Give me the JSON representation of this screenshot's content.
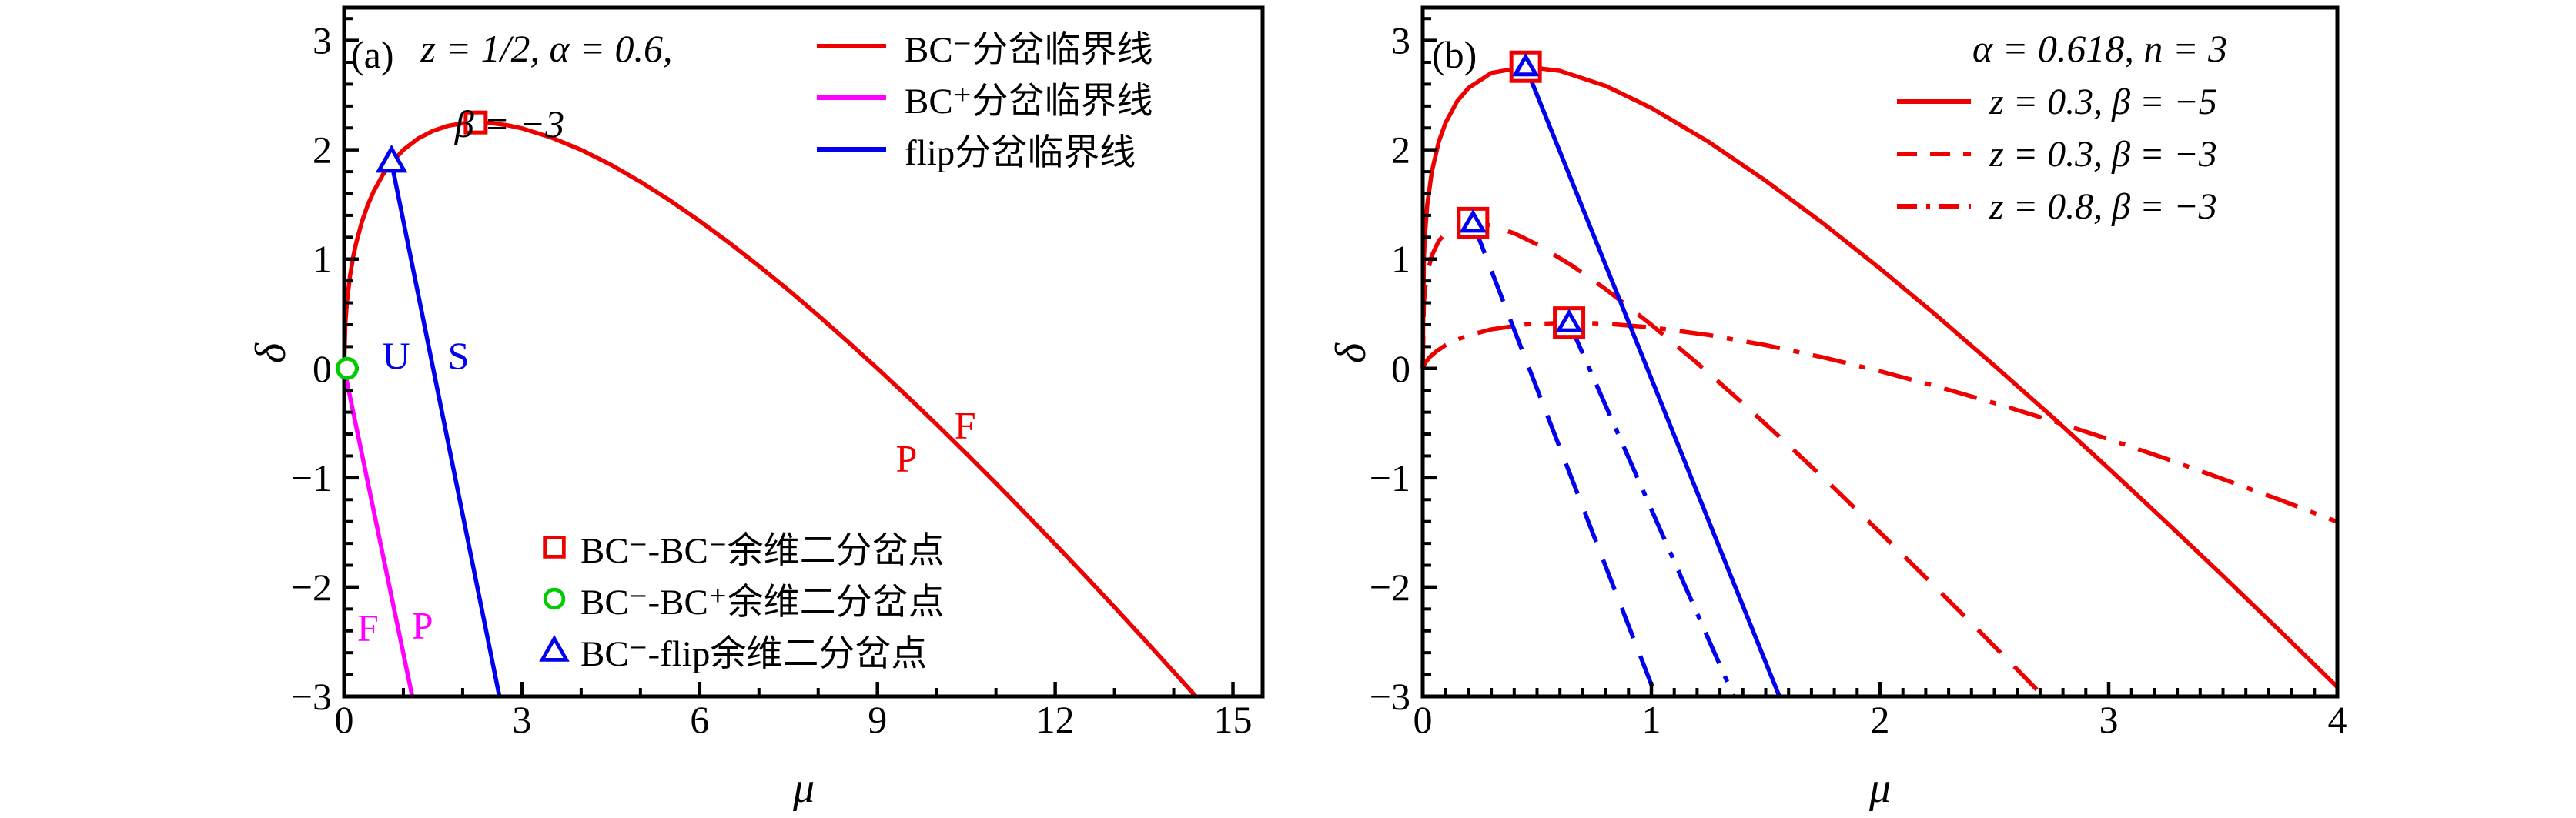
{
  "page": {
    "background": "#ffffff",
    "text_color": "#000000"
  },
  "chart_data": [
    {
      "id": "a",
      "type": "line",
      "panel_tag": "(a)",
      "title_lines": [
        "z = 1/2, α = 0.6,",
        "β = −3"
      ],
      "xlabel": "μ",
      "ylabel": "δ",
      "xlim": [
        0,
        15.5
      ],
      "ylim": [
        -3,
        3.3
      ],
      "x_major_ticks": [
        0,
        3,
        6,
        9,
        12,
        15
      ],
      "x_minor_step": 1,
      "y_major_ticks": [
        -3,
        -2,
        -1,
        0,
        1,
        2,
        3
      ],
      "y_minor_step": 0.2,
      "grid": false,
      "legend_position": "top-right-inside",
      "series": [
        {
          "name": "BC⁻分岔临界线",
          "color": "#ee0000",
          "style": "solid",
          "in_legend": true,
          "points": [
            [
              0,
              0
            ],
            [
              0.02,
              0.404
            ],
            [
              0.05,
              0.621
            ],
            [
              0.1,
              0.849
            ],
            [
              0.15,
              1.012
            ],
            [
              0.2,
              1.142
            ],
            [
              0.3,
              1.343
            ],
            [
              0.4,
              1.497
            ],
            [
              0.5,
              1.621
            ],
            [
              0.65,
              1.769
            ],
            [
              0.8,
              1.883
            ],
            [
              1,
              2
            ],
            [
              1.25,
              2.104
            ],
            [
              1.5,
              2.174
            ],
            [
              1.75,
              2.219
            ],
            [
              2,
              2.243
            ],
            [
              2.25,
              2.25
            ],
            [
              2.5,
              2.243
            ],
            [
              2.75,
              2.225
            ],
            [
              3,
              2.196
            ],
            [
              3.5,
              2.112
            ],
            [
              4,
              2
            ],
            [
              4.5,
              1.864
            ],
            [
              5,
              1.708
            ],
            [
              5.5,
              1.536
            ],
            [
              6,
              1.348
            ],
            [
              6.5,
              1.149
            ],
            [
              7,
              0.937
            ],
            [
              7.5,
              0.716
            ],
            [
              8,
              0.485
            ],
            [
              8.5,
              0.246
            ],
            [
              9,
              0
            ],
            [
              9.5,
              -0.253
            ],
            [
              10,
              -0.513
            ],
            [
              10.5,
              -0.779
            ],
            [
              11,
              -1.05
            ],
            [
              11.5,
              -1.327
            ],
            [
              12,
              -1.608
            ],
            [
              12.5,
              -1.893
            ],
            [
              13,
              -2.183
            ],
            [
              13.5,
              -2.477
            ],
            [
              14,
              -2.775
            ],
            [
              14.37,
              -2.997
            ]
          ]
        },
        {
          "name": "BC⁺分岔临界线",
          "color": "#ff00ff",
          "style": "solid",
          "in_legend": true,
          "points": [
            [
              0,
              0
            ],
            [
              1.15,
              -3
            ]
          ]
        },
        {
          "name": "flip分岔临界线",
          "color": "#0000ee",
          "style": "solid",
          "in_legend": true,
          "points": [
            [
              0.8,
              1.883
            ],
            [
              2.62,
              -3
            ]
          ]
        }
      ],
      "point_markers": [
        {
          "label": "BC⁻-BC⁻余维二分岔点",
          "shape": "square",
          "color": "#ee0000",
          "x": 2.22,
          "y": 2.25
        },
        {
          "label": "BC⁻-BC⁺余维二分岔点",
          "shape": "circle",
          "color": "#00cc00",
          "x": 0.05,
          "y": 0
        },
        {
          "label": "BC⁻-flip余维二分岔点",
          "shape": "triangle",
          "color": "#0000ee",
          "x": 0.8,
          "y": 1.9
        }
      ],
      "annotations": [
        {
          "text": "U",
          "color": "#0000ee",
          "x": 0.88,
          "y": 0.12
        },
        {
          "text": "S",
          "color": "#0000ee",
          "x": 1.93,
          "y": 0.12
        },
        {
          "text": "F",
          "color": "#ff00ff",
          "x": 0.4,
          "y": -2.37
        },
        {
          "text": "P",
          "color": "#ff00ff",
          "x": 1.32,
          "y": -2.35
        },
        {
          "text": "P",
          "color": "#ee0000",
          "x": 9.49,
          "y": -0.82
        },
        {
          "text": "F",
          "color": "#ee0000",
          "x": 10.48,
          "y": -0.52
        }
      ]
    },
    {
      "id": "b",
      "type": "line",
      "panel_tag": "(b)",
      "title_lines": [
        "α = 0.618, n = 3"
      ],
      "xlabel": "μ",
      "ylabel": "δ",
      "xlim": [
        0,
        4
      ],
      "ylim": [
        -3,
        3.3
      ],
      "x_major_ticks": [
        0,
        1,
        2,
        3,
        4
      ],
      "x_minor_step": 0.1,
      "y_major_ticks": [
        -3,
        -2,
        -1,
        0,
        1,
        2,
        3
      ],
      "y_minor_step": 0.2,
      "grid": false,
      "legend_position": "top-right-inside",
      "series": [
        {
          "name": "z = 0.3, β = −5",
          "color": "#ee0000",
          "style": "solid",
          "in_legend": true,
          "points": [
            [
              0,
              0
            ],
            [
              0.005,
              1.01
            ],
            [
              0.01,
              1.232
            ],
            [
              0.02,
              1.497
            ],
            [
              0.04,
              1.802
            ],
            [
              0.07,
              2.073
            ],
            [
              0.1,
              2.248
            ],
            [
              0.15,
              2.442
            ],
            [
              0.2,
              2.566
            ],
            [
              0.3,
              2.703
            ],
            [
              0.45,
              2.761
            ],
            [
              0.6,
              2.722
            ],
            [
              0.8,
              2.584
            ],
            [
              1,
              2.383
            ],
            [
              1.25,
              2.073
            ],
            [
              1.5,
              1.717
            ],
            [
              1.75,
              1.329
            ],
            [
              2,
              0.914
            ],
            [
              2.25,
              0.479
            ],
            [
              2.5,
              0.026
            ],
            [
              2.75,
              -0.437
            ],
            [
              3,
              -0.915
            ],
            [
              3.25,
              -1.403
            ],
            [
              3.5,
              -1.898
            ],
            [
              3.75,
              -2.403
            ],
            [
              4,
              -2.914
            ]
          ]
        },
        {
          "name": "z = 0.3, β = −3",
          "color": "#ee0000",
          "style": "dashed",
          "in_legend": true,
          "points": [
            [
              0,
              0
            ],
            [
              0.005,
              0.598
            ],
            [
              0.01,
              0.725
            ],
            [
              0.02,
              0.873
            ],
            [
              0.04,
              1.035
            ],
            [
              0.07,
              1.166
            ],
            [
              0.1,
              1.24
            ],
            [
              0.15,
              1.305
            ],
            [
              0.22,
              1.33
            ],
            [
              0.3,
              1.307
            ],
            [
              0.4,
              1.236
            ],
            [
              0.5,
              1.134
            ],
            [
              0.65,
              0.945
            ],
            [
              0.8,
              0.725
            ],
            [
              1,
              0.4
            ],
            [
              1.2,
              0.05
            ],
            [
              1.4,
              -0.319
            ],
            [
              1.6,
              -0.702
            ],
            [
              1.8,
              -1.096
            ],
            [
              2,
              -1.5
            ],
            [
              2.2,
              -1.912
            ],
            [
              2.4,
              -2.33
            ],
            [
              2.6,
              -2.754
            ],
            [
              2.71,
              -2.99
            ]
          ]
        },
        {
          "name": "z = 0.8, β = −3",
          "color": "#ee0000",
          "style": "dashdot",
          "in_legend": true,
          "points": [
            [
              0,
              0
            ],
            [
              0.01,
              0.049
            ],
            [
              0.03,
              0.103
            ],
            [
              0.06,
              0.158
            ],
            [
              0.1,
              0.213
            ],
            [
              0.15,
              0.264
            ],
            [
              0.2,
              0.303
            ],
            [
              0.3,
              0.358
            ],
            [
              0.45,
              0.403
            ],
            [
              0.64,
              0.42
            ],
            [
              0.8,
              0.41
            ],
            [
              1,
              0.376
            ],
            [
              1.25,
              0.306
            ],
            [
              1.5,
              0.213
            ],
            [
              1.75,
              0.102
            ],
            [
              2,
              -0.025
            ],
            [
              2.25,
              -0.165
            ],
            [
              2.5,
              -0.316
            ],
            [
              2.75,
              -0.477
            ],
            [
              3,
              -0.647
            ],
            [
              3.25,
              -0.825
            ],
            [
              3.5,
              -1.012
            ],
            [
              3.75,
              -1.203
            ],
            [
              4,
              -1.402
            ]
          ]
        },
        {
          "name": "",
          "color": "#0000ee",
          "style": "solid",
          "in_legend": false,
          "points": [
            [
              0.45,
              2.76
            ],
            [
              1.56,
              -3
            ]
          ]
        },
        {
          "name": "",
          "color": "#0000ee",
          "style": "dashed",
          "in_legend": false,
          "points": [
            [
              0.22,
              1.33
            ],
            [
              1.02,
              -3
            ]
          ]
        },
        {
          "name": "",
          "color": "#0000ee",
          "style": "dashdot",
          "in_legend": false,
          "points": [
            [
              0.64,
              0.42
            ],
            [
              1.36,
              -3
            ]
          ]
        }
      ],
      "point_markers": [
        {
          "shape": "square+triangle",
          "square_color": "#ee0000",
          "triangle_color": "#0000ee",
          "x": 0.45,
          "y": 2.76
        },
        {
          "shape": "square+triangle",
          "square_color": "#ee0000",
          "triangle_color": "#0000ee",
          "x": 0.22,
          "y": 1.33
        },
        {
          "shape": "square+triangle",
          "square_color": "#ee0000",
          "triangle_color": "#0000ee",
          "x": 0.64,
          "y": 0.42
        }
      ],
      "annotations": []
    }
  ]
}
